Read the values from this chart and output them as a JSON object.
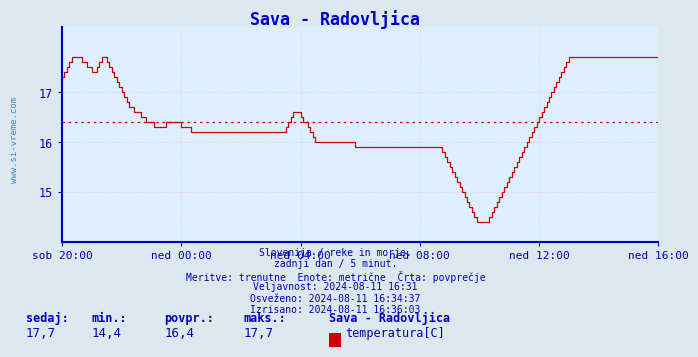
{
  "title": "Sava - Radovljica",
  "title_color": "#0000cc",
  "line_color": "#cc0000",
  "avg_line_color": "#cc0000",
  "avg_value": 16.4,
  "y_axis_min": 14.0,
  "y_axis_max": 18.3,
  "y_ticks": [
    15,
    16,
    17
  ],
  "x_tick_labels": [
    "sob 20:00",
    "ned 00:00",
    "ned 04:00",
    "ned 08:00",
    "ned 12:00",
    "ned 16:00"
  ],
  "x_tick_positions": [
    0,
    48,
    96,
    144,
    192,
    240
  ],
  "total_points": 289,
  "background_color": "#dde8ee",
  "plot_bg_color": "#ddeeff",
  "grid_color": "#ffbbbb",
  "axis_color": "#0000bb",
  "info_lines": [
    "Slovenija / reke in morje.",
    "zadnji dan / 5 minut.",
    "Meritve: trenutne  Enote: metrične  Črta: povprečje",
    "Veljavnost: 2024-08-11 16:31",
    "Osveženo: 2024-08-11 16:34:37",
    "Izrisano: 2024-08-11 16:36:03"
  ],
  "footer_labels": [
    "sedaj:",
    "min.:",
    "povpr.:",
    "maks.:"
  ],
  "footer_values": [
    "17,7",
    "14,4",
    "16,4",
    "17,7"
  ],
  "footer_station": "Sava - Radovljica",
  "footer_series": "temperatura[C]",
  "footer_color": "#cc0000",
  "sidebar_text": "www.si-vreme.com",
  "sidebar_color": "#4488cc",
  "temperature_data": [
    17.3,
    17.3,
    17.4,
    17.5,
    17.6,
    17.7,
    17.7,
    17.7,
    17.7,
    17.6,
    17.6,
    17.5,
    17.5,
    17.4,
    17.4,
    17.5,
    17.6,
    17.7,
    17.7,
    17.6,
    17.5,
    17.4,
    17.3,
    17.2,
    17.1,
    17.0,
    16.9,
    16.8,
    16.7,
    16.7,
    16.6,
    16.6,
    16.6,
    16.5,
    16.5,
    16.4,
    16.4,
    16.4,
    16.3,
    16.3,
    16.3,
    16.3,
    16.3,
    16.4,
    16.4,
    16.4,
    16.4,
    16.4,
    16.4,
    16.3,
    16.3,
    16.3,
    16.3,
    16.2,
    16.2,
    16.2,
    16.2,
    16.2,
    16.2,
    16.2,
    16.2,
    16.2,
    16.2,
    16.2,
    16.2,
    16.2,
    16.2,
    16.2,
    16.2,
    16.2,
    16.2,
    16.2,
    16.2,
    16.2,
    16.2,
    16.2,
    16.2,
    16.2,
    16.2,
    16.2,
    16.2,
    16.2,
    16.2,
    16.2,
    16.2,
    16.2,
    16.2,
    16.2,
    16.2,
    16.2,
    16.2,
    16.3,
    16.4,
    16.5,
    16.6,
    16.6,
    16.6,
    16.5,
    16.4,
    16.4,
    16.3,
    16.2,
    16.1,
    16.0,
    16.0,
    16.0,
    16.0,
    16.0,
    16.0,
    16.0,
    16.0,
    16.0,
    16.0,
    16.0,
    16.0,
    16.0,
    16.0,
    16.0,
    16.0,
    15.9,
    15.9,
    15.9,
    15.9,
    15.9,
    15.9,
    15.9,
    15.9,
    15.9,
    15.9,
    15.9,
    15.9,
    15.9,
    15.9,
    15.9,
    15.9,
    15.9,
    15.9,
    15.9,
    15.9,
    15.9,
    15.9,
    15.9,
    15.9,
    15.9,
    15.9,
    15.9,
    15.9,
    15.9,
    15.9,
    15.9,
    15.9,
    15.9,
    15.9,
    15.9,
    15.8,
    15.7,
    15.6,
    15.5,
    15.4,
    15.3,
    15.2,
    15.1,
    15.0,
    14.9,
    14.8,
    14.7,
    14.6,
    14.5,
    14.4,
    14.4,
    14.4,
    14.4,
    14.4,
    14.5,
    14.6,
    14.7,
    14.8,
    14.9,
    15.0,
    15.1,
    15.2,
    15.3,
    15.4,
    15.5,
    15.6,
    15.7,
    15.8,
    15.9,
    16.0,
    16.1,
    16.2,
    16.3,
    16.4,
    16.5,
    16.6,
    16.7,
    16.8,
    16.9,
    17.0,
    17.1,
    17.2,
    17.3,
    17.4,
    17.5,
    17.6,
    17.7,
    17.7,
    17.7,
    17.7,
    17.7,
    17.7,
    17.7,
    17.7,
    17.7,
    17.7,
    17.7,
    17.7,
    17.7,
    17.7,
    17.7,
    17.7,
    17.7,
    17.7,
    17.7,
    17.7,
    17.7,
    17.7,
    17.7,
    17.7,
    17.7,
    17.7,
    17.7,
    17.7,
    17.7,
    17.7,
    17.7,
    17.7,
    17.7,
    17.7,
    17.7,
    17.7,
    17.7,
    17.7,
    17.7,
    17.7,
    17.7,
    17.7,
    17.7,
    17.7
  ]
}
